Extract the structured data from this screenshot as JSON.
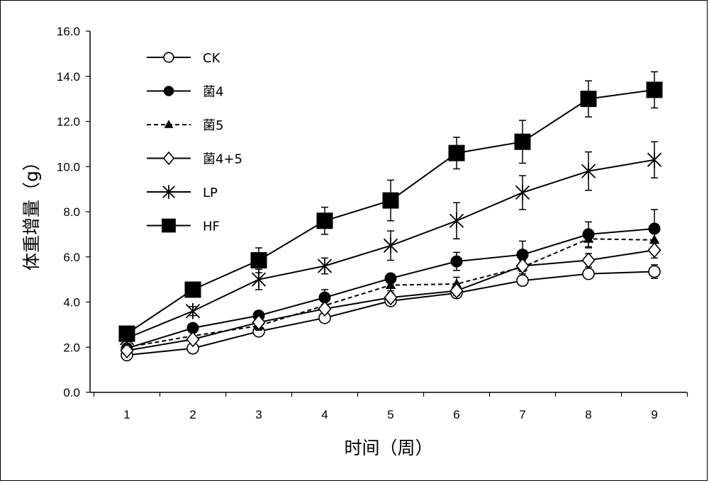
{
  "chart_data": {
    "type": "line",
    "xlabel": "时间（周）",
    "ylabel": "体重增量（g）",
    "x": [
      1,
      2,
      3,
      4,
      5,
      6,
      7,
      8,
      9
    ],
    "x_tick_labels": [
      "1",
      "2",
      "3",
      "4",
      "5",
      "6",
      "7",
      "8",
      "9"
    ],
    "ylim": [
      0,
      16
    ],
    "y_tick_labels": [
      "0.0",
      "2.0",
      "4.0",
      "6.0",
      "8.0",
      "10.0",
      "12.0",
      "14.0",
      "16.0"
    ],
    "grid": false,
    "legend_position": "top-left",
    "series": [
      {
        "name": "CK",
        "marker": "circle-open",
        "dash": false,
        "values": [
          1.65,
          1.95,
          2.7,
          3.3,
          4.05,
          4.4,
          4.95,
          5.25,
          5.35
        ],
        "errors": [
          0.1,
          0.15,
          0.15,
          0.15,
          0.2,
          0.15,
          0.2,
          0.2,
          0.3
        ]
      },
      {
        "name": "菌4",
        "marker": "circle-filled",
        "dash": false,
        "values": [
          1.95,
          2.85,
          3.4,
          4.2,
          5.05,
          5.8,
          6.1,
          7.0,
          7.25
        ],
        "errors": [
          0.15,
          0.2,
          0.2,
          0.35,
          0.2,
          0.4,
          0.6,
          0.55,
          0.85
        ]
      },
      {
        "name": "菌5",
        "marker": "triangle-filled",
        "dash": true,
        "values": [
          2.0,
          2.5,
          2.95,
          3.85,
          4.75,
          4.8,
          5.55,
          6.8,
          6.75
        ],
        "errors": [
          0.1,
          0.15,
          0.2,
          0.2,
          0.25,
          0.3,
          0.3,
          0.4,
          0.4
        ]
      },
      {
        "name": "菌4+5",
        "marker": "diamond-open",
        "dash": false,
        "values": [
          1.85,
          2.35,
          3.1,
          3.7,
          4.2,
          4.5,
          5.6,
          5.85,
          6.3
        ],
        "errors": [
          0.1,
          0.15,
          0.2,
          0.2,
          0.2,
          0.2,
          0.25,
          0.3,
          0.35
        ]
      },
      {
        "name": "LP",
        "marker": "asterisk",
        "dash": false,
        "values": [
          2.4,
          3.6,
          5.0,
          5.6,
          6.5,
          7.6,
          8.85,
          9.8,
          10.3
        ],
        "errors": [
          0.15,
          0.2,
          0.45,
          0.35,
          0.65,
          0.8,
          0.75,
          0.85,
          0.8
        ]
      },
      {
        "name": "HF",
        "marker": "square-filled",
        "dash": false,
        "values": [
          2.6,
          4.55,
          5.85,
          7.6,
          8.5,
          10.6,
          11.1,
          13.0,
          13.4
        ],
        "errors": [
          0.2,
          0.2,
          0.55,
          0.6,
          0.9,
          0.7,
          0.95,
          0.8,
          0.8
        ]
      }
    ]
  }
}
